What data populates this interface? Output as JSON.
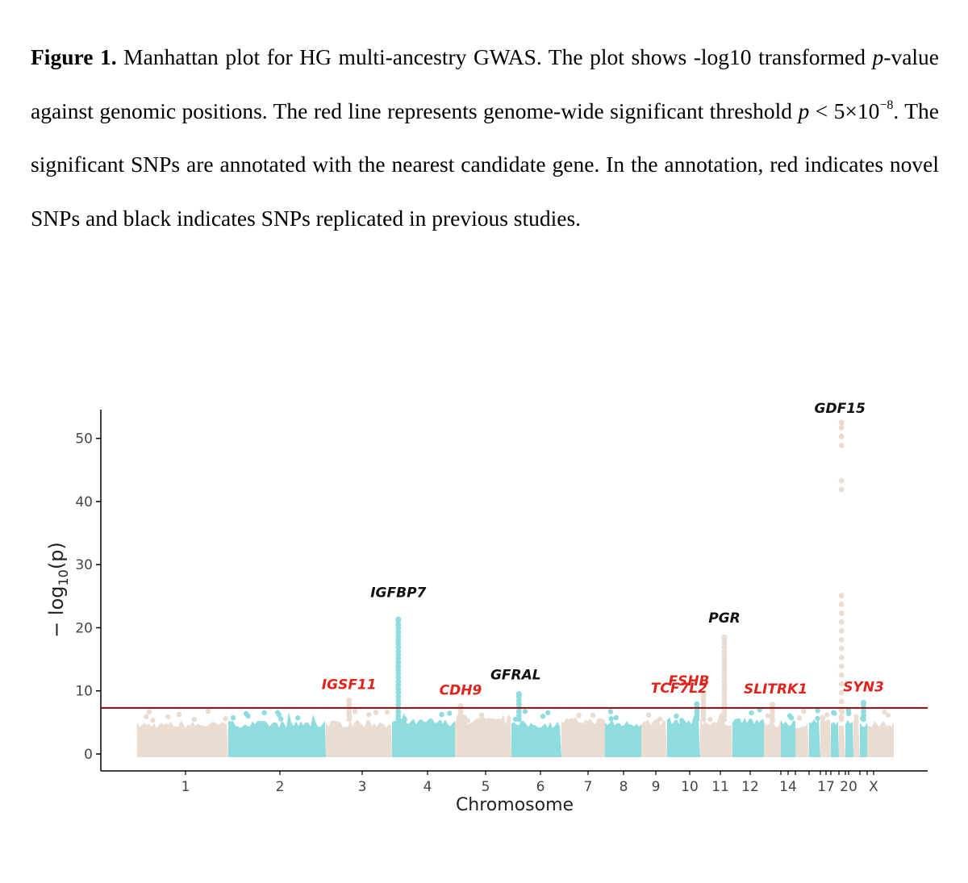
{
  "caption": {
    "label": "Figure 1.",
    "t1": "Manhattan plot for HG multi-ancestry GWAS. The plot shows -log10 transformed ",
    "p1": "p",
    "t2": "-value against genomic positions. The red line represents genome-wide significant threshold ",
    "p2": "p",
    "t3": " < 5×10",
    "exp": "−8",
    "t4": ". The significant SNPs are annotated with the nearest candidate gene. In the annotation, red indicates novel SNPs and black indicates SNPs replicated in previous studies."
  },
  "colors": {
    "a": "#eadcd0",
    "b": "#8fdcdf",
    "threshold": "#8b0c0c",
    "novel": "#e0231c",
    "replicated": "#111111"
  },
  "chart_data": {
    "type": "scatter",
    "xlabel": "Chromosome",
    "ylabel_main": "− log",
    "ylabel_sub": "10",
    "ylabel_tail": "(p)",
    "yticks": [
      0,
      10,
      20,
      30,
      40,
      50
    ],
    "ylim": [
      0,
      52
    ],
    "threshold": 7.3,
    "xtick_labels": [
      "1",
      "2",
      "3",
      "4",
      "5",
      "6",
      "7",
      "8",
      "9",
      "10",
      "11",
      "12",
      "14",
      "17",
      "20",
      "X"
    ],
    "chromosomes": [
      "1",
      "2",
      "3",
      "4",
      "5",
      "6",
      "7",
      "8",
      "9",
      "10",
      "11",
      "12",
      "13",
      "14",
      "15",
      "16",
      "17",
      "18",
      "19",
      "20",
      "21",
      "22",
      "X"
    ],
    "peaks": [
      {
        "gene": "IGSF11",
        "chrom": "3",
        "pos": 0.35,
        "value": 8.5,
        "status": "novel"
      },
      {
        "gene": "IGFBP7",
        "chrom": "4",
        "pos": 0.1,
        "value": 21.3,
        "status": "replicated"
      },
      {
        "gene": "CDH9",
        "chrom": "5",
        "pos": 0.1,
        "value": 7.6,
        "status": "novel"
      },
      {
        "gene": "GFRAL",
        "chrom": "6",
        "pos": 0.15,
        "value": 9.5,
        "status": "replicated"
      },
      {
        "gene": "TCF7L2",
        "chrom": "10",
        "pos": 0.9,
        "value": 7.9,
        "status": "novel"
      },
      {
        "gene": "FSHB",
        "chrom": "11",
        "pos": 0.1,
        "value": 9.3,
        "status": "novel"
      },
      {
        "gene": "PGR",
        "chrom": "11",
        "pos": 0.75,
        "value": 18.5,
        "status": "replicated"
      },
      {
        "gene": "SLITRK1",
        "chrom": "13",
        "pos": 0.5,
        "value": 7.8,
        "status": "novel"
      },
      {
        "gene": "GDF15",
        "chrom": "19",
        "pos": 0.4,
        "value": 52.5,
        "status": "replicated"
      },
      {
        "gene": "SYN3",
        "chrom": "22",
        "pos": 0.5,
        "value": 8.1,
        "status": "novel"
      }
    ]
  }
}
